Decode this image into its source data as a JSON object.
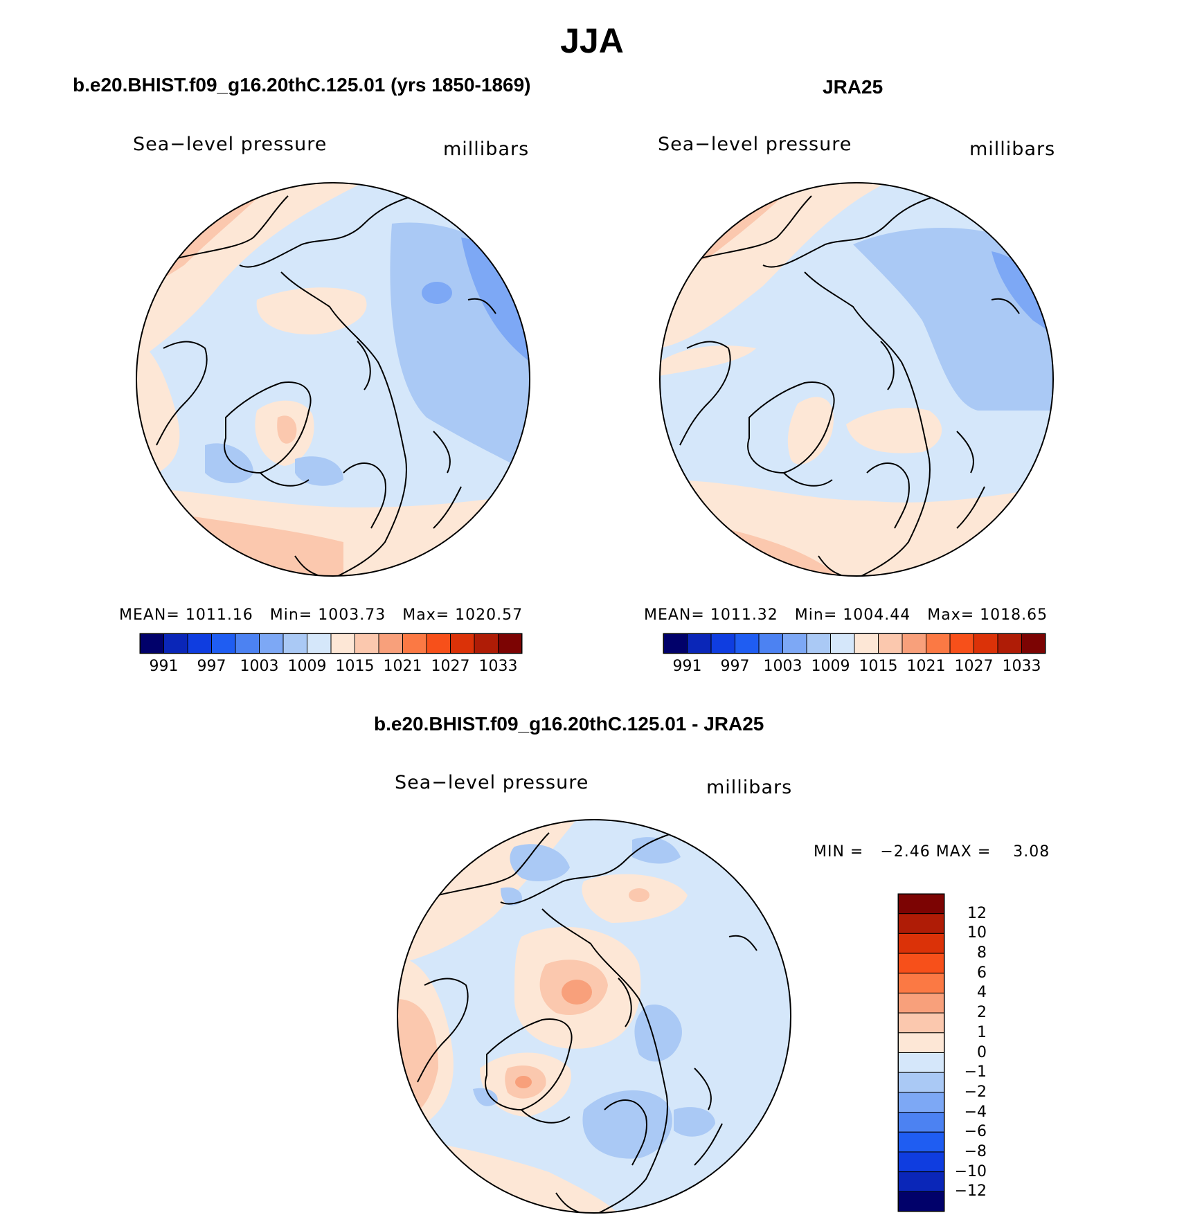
{
  "title": "JJA",
  "colors": {
    "abs_scale": [
      "#01016a",
      "#0a26b8",
      "#0f3de0",
      "#1f5df2",
      "#4c82f2",
      "#7da8f5",
      "#aac9f5",
      "#d5e7fa",
      "#fde7d6",
      "#fbc8ae",
      "#f8a07b",
      "#fb7944",
      "#f7501a",
      "#db3208",
      "#af1c06",
      "#7c0403"
    ],
    "diff_scale": [
      "#01016a",
      "#0a26b8",
      "#0f3de0",
      "#1f5df2",
      "#4c82f2",
      "#7da8f5",
      "#aac9f5",
      "#d5e7fa",
      "#fde7d6",
      "#fbc8ae",
      "#f8a07b",
      "#fb7944",
      "#f7501a",
      "#db3208",
      "#af1c06",
      "#7c0403"
    ]
  },
  "panels": {
    "model": {
      "title": "b.e20.BHIST.f09_g16.20thC.125.01 (yrs 1850-1869)",
      "variable": "Sea−level pressure",
      "units": "millibars",
      "mean_label": "MEAN=",
      "mean": "1011.16",
      "min_label": "Min=",
      "min": "1003.73",
      "max_label": "Max=",
      "max": "1020.57",
      "colorbar_ticks": [
        "991",
        "997",
        "1003",
        "1009",
        "1015",
        "1021",
        "1027",
        "1033"
      ]
    },
    "obs": {
      "title": "JRA25",
      "variable": "Sea−level pressure",
      "units": "millibars",
      "mean_label": "MEAN=",
      "mean": "1011.32",
      "min_label": "Min=",
      "min": "1004.44",
      "max_label": "Max=",
      "max": "1018.65",
      "colorbar_ticks": [
        "991",
        "997",
        "1003",
        "1009",
        "1015",
        "1021",
        "1027",
        "1033"
      ]
    },
    "diff": {
      "title": "b.e20.BHIST.f09_g16.20thC.125.01 - JRA25",
      "variable": "Sea−level pressure",
      "units": "millibars",
      "min_label": "MIN =",
      "min": "−2.46",
      "max_label": "MAX =",
      "max": "3.08",
      "colorbar_ticks": [
        "12",
        "10",
        "8",
        "6",
        "4",
        "2",
        "1",
        "0",
        "−1",
        "−2",
        "−4",
        "−6",
        "−8",
        "−10",
        "−12"
      ]
    }
  }
}
